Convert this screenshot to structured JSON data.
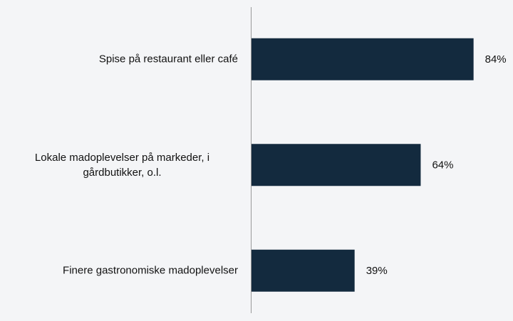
{
  "chart_data": {
    "type": "bar",
    "orientation": "horizontal",
    "categories": [
      "Spise på restaurant eller café",
      "Lokale madoplevelser på markeder, i gårdbutikker, o.l.",
      "Finere gastronomiske madoplevelser"
    ],
    "values": [
      84,
      64,
      39
    ],
    "value_labels": [
      "84%",
      "64%",
      "39%"
    ],
    "color": "#132a3e",
    "xlim": [
      0,
      100
    ]
  }
}
